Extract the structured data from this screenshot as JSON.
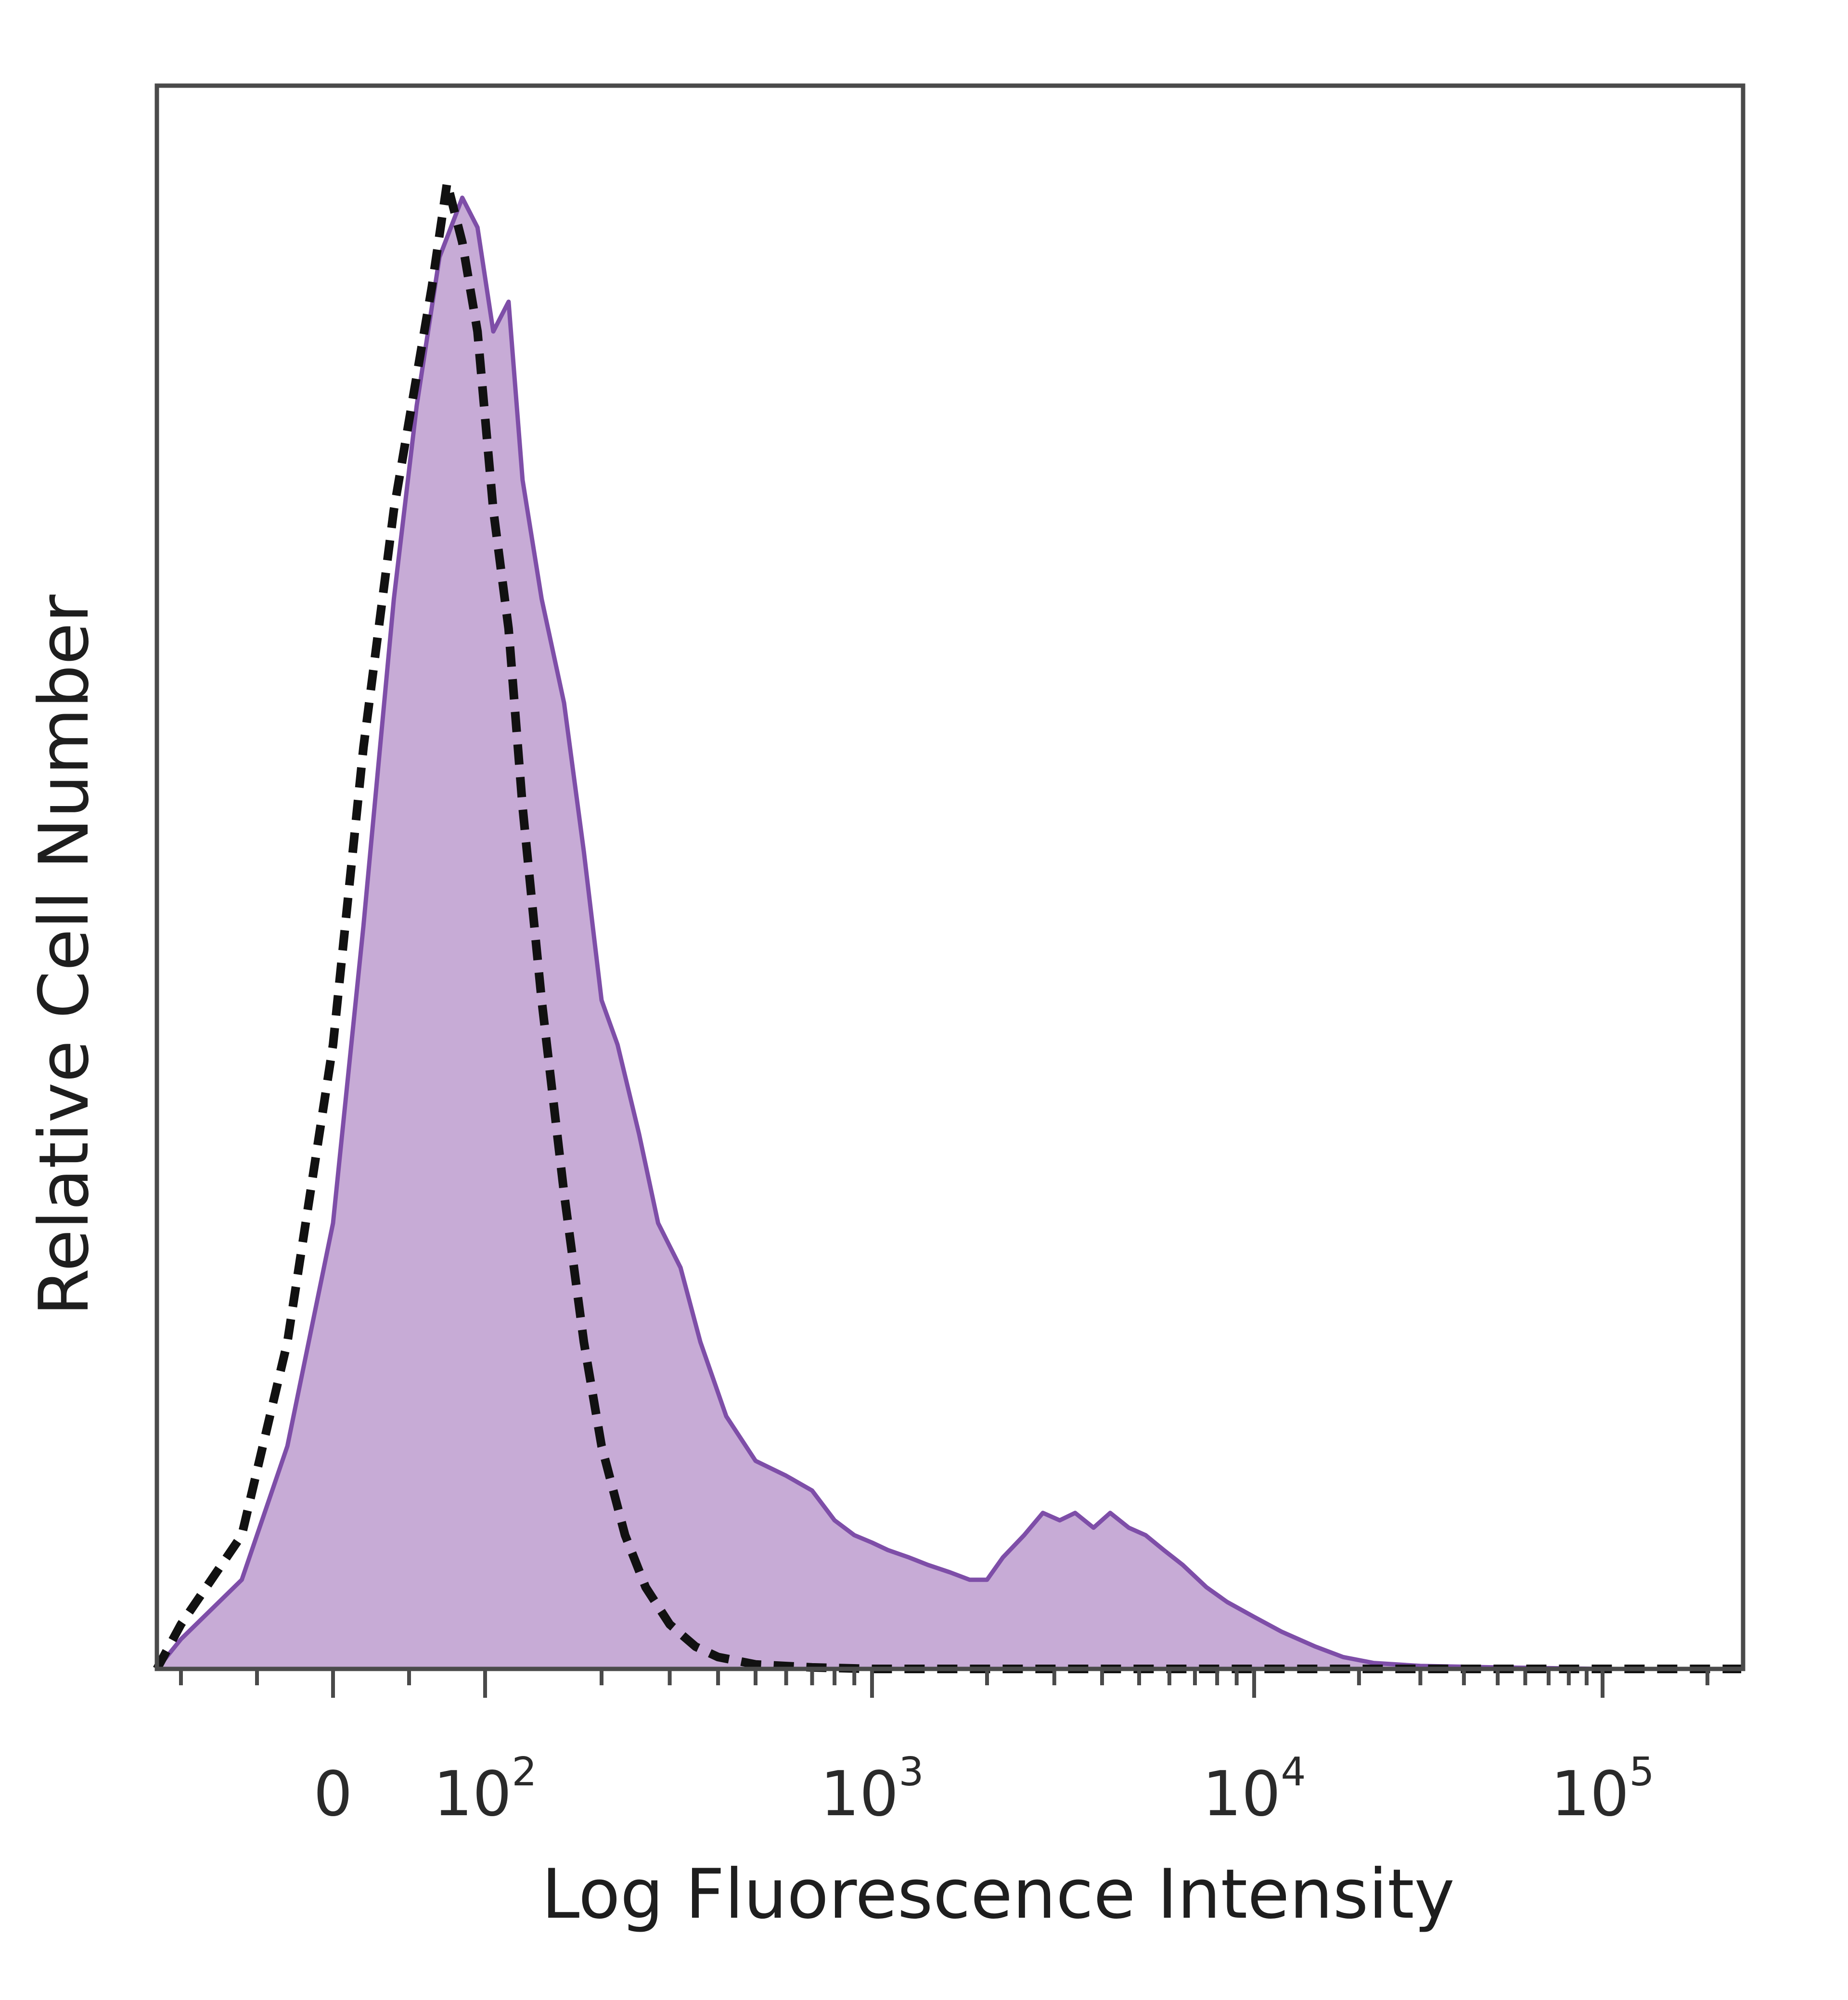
{
  "chart_data": {
    "type": "area",
    "title": "",
    "xlabel": "Log Fluorescence Intensity",
    "ylabel": "Relative Cell Number",
    "x_scale": "biexponential",
    "x_tick_labels": [
      {
        "base": "0",
        "exp": ""
      },
      {
        "base": "10",
        "exp": "2"
      },
      {
        "base": "10",
        "exp": "3"
      },
      {
        "base": "10",
        "exp": "4"
      },
      {
        "base": "10",
        "exp": "5"
      }
    ],
    "x_tick_values": [
      0,
      100,
      1000,
      10000,
      100000
    ],
    "xlim": [
      -150,
      250000
    ],
    "ylim": [
      0,
      100
    ],
    "grid": false,
    "legend": "none",
    "series": [
      {
        "style": "filled-solid",
        "color": "#7e4ea8",
        "fill": "#c7abd6",
        "x": [
          -150,
          -100,
          -60,
          -30,
          0,
          20,
          40,
          55,
          70,
          85,
          95,
          105,
          115,
          125,
          140,
          160,
          180,
          200,
          220,
          250,
          280,
          320,
          360,
          420,
          500,
          600,
          700,
          800,
          900,
          1000,
          1100,
          1250,
          1400,
          1600,
          1800,
          2000,
          2200,
          2500,
          2800,
          3100,
          3400,
          3800,
          4200,
          4700,
          5200,
          5800,
          6500,
          7500,
          8500,
          10000,
          12000,
          15000,
          18000,
          22000,
          30000,
          50000,
          100000,
          250000
        ],
        "y": [
          0,
          2,
          6,
          15,
          30,
          50,
          72,
          85,
          95,
          99,
          97,
          90,
          92,
          80,
          72,
          65,
          55,
          45,
          42,
          36,
          30,
          27,
          22,
          17,
          14,
          13,
          12,
          10,
          9,
          8.5,
          8,
          7.5,
          7,
          6.5,
          6,
          6,
          7.5,
          9,
          10.5,
          10,
          10.5,
          9.5,
          10.5,
          9.5,
          9,
          8,
          7,
          5.5,
          4.5,
          3.5,
          2.5,
          1.5,
          0.8,
          0.4,
          0.2,
          0.1,
          0,
          0
        ]
      },
      {
        "style": "dashed",
        "color": "#111111",
        "x": [
          -150,
          -100,
          -60,
          -30,
          0,
          20,
          40,
          55,
          65,
          75,
          85,
          95,
          105,
          115,
          125,
          140,
          160,
          180,
          200,
          230,
          260,
          300,
          350,
          400,
          500,
          700,
          1000,
          250000
        ],
        "y": [
          0,
          3,
          9,
          22,
          42,
          62,
          78,
          87,
          93,
          100,
          96,
          90,
          78,
          70,
          58,
          45,
          32,
          22,
          15,
          9,
          5.5,
          3,
          1.5,
          0.8,
          0.3,
          0.1,
          0,
          0
        ]
      }
    ]
  }
}
